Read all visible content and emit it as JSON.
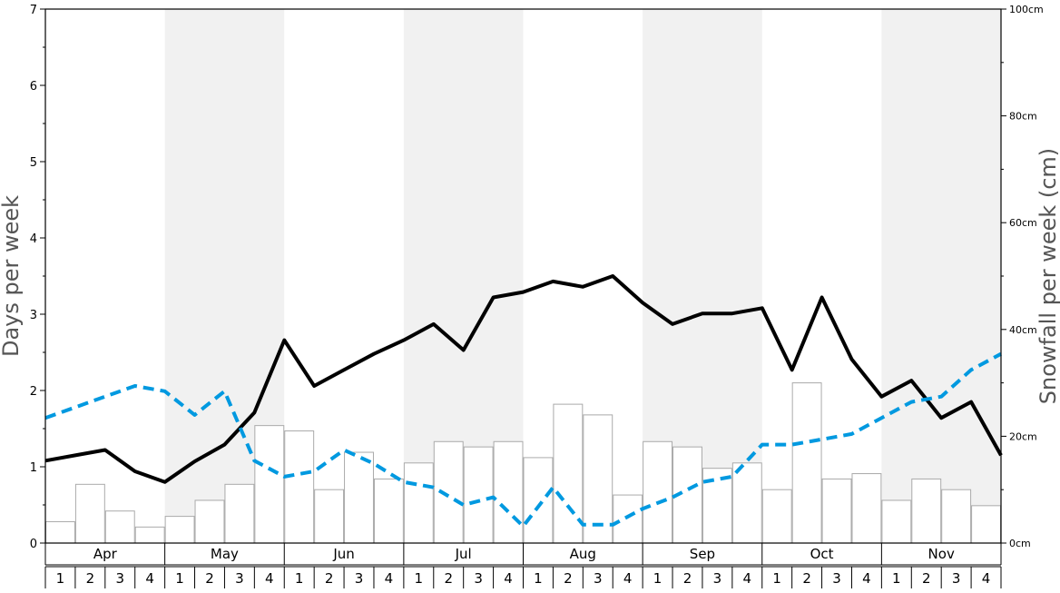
{
  "chart_data": {
    "type": "bar",
    "left_axis": {
      "title": "Days per week",
      "range": [
        0,
        7
      ],
      "tick_labels": [
        "0",
        "1",
        "2",
        "3",
        "4",
        "5",
        "6",
        "7"
      ]
    },
    "right_axis": {
      "title": "Snowfall per week (cm)",
      "range": [
        0,
        100
      ],
      "tick_labels": [
        "0cm",
        "20cm",
        "40cm",
        "60cm",
        "80cm",
        "100cm"
      ]
    },
    "months": [
      "Apr",
      "May",
      "Jun",
      "Jul",
      "Aug",
      "Sep",
      "Oct",
      "Nov"
    ],
    "week_labels": [
      "1",
      "2",
      "3",
      "4"
    ],
    "shaded_months": [
      "May",
      "Jul",
      "Sep",
      "Nov"
    ],
    "colors": {
      "bar_fill": "#ffffff",
      "bar_stroke": "#aaaaaa",
      "solid_line": "#000000",
      "dashed_line": "#0099e0",
      "shade": "#f1f1f1"
    },
    "series": [
      {
        "kind": "bar",
        "axis": "right",
        "values": [
          4,
          11,
          6,
          3,
          5,
          8,
          11,
          22,
          21,
          10,
          17,
          12,
          15,
          19,
          18,
          19,
          16,
          26,
          24,
          9,
          19,
          18,
          14,
          15,
          10,
          30,
          12,
          13,
          8,
          12,
          10,
          7
        ]
      },
      {
        "kind": "line",
        "style": "solid",
        "axis": "left",
        "values": [
          1.08,
          1.15,
          1.22,
          0.94,
          0.8,
          1.07,
          1.29,
          1.71,
          2.66,
          2.06,
          2.27,
          2.48,
          2.66,
          2.87,
          2.53,
          3.22,
          3.29,
          3.43,
          3.36,
          3.5,
          3.15,
          2.87,
          3.01,
          3.01,
          3.08,
          2.27,
          3.22,
          2.41,
          1.92,
          2.13,
          1.64,
          1.85,
          1.15
        ]
      },
      {
        "kind": "line",
        "style": "dashed",
        "axis": "left",
        "values": [
          1.64,
          1.78,
          1.92,
          2.06,
          1.99,
          1.68,
          1.99,
          1.08,
          0.87,
          0.94,
          1.22,
          1.04,
          0.8,
          0.73,
          0.5,
          0.6,
          0.22,
          0.73,
          0.24,
          0.24,
          0.45,
          0.6,
          0.8,
          0.87,
          1.29,
          1.29,
          1.36,
          1.43,
          1.64,
          1.85,
          1.92,
          2.27,
          2.48
        ]
      }
    ],
    "grid": false,
    "legend": "none"
  }
}
